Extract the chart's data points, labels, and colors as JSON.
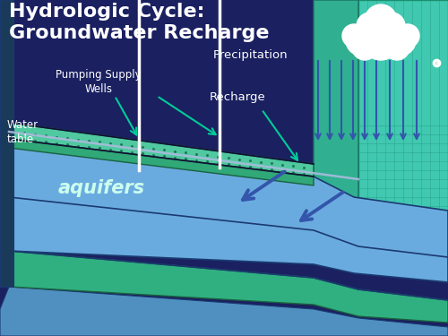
{
  "title_line1": "Hydrologic Cycle:",
  "title_line2": "Groundwater Recharge",
  "bg_color": "#1a2060",
  "label_precipitation": "Precipitation",
  "label_pumping": "Pumping Supply\nWells",
  "label_recharge": "Recharge",
  "label_water_table": "Water\ntable",
  "label_aquifers": "aquifers",
  "title_color": "white",
  "label_color": "white",
  "rain_color": "#3355aa",
  "well_color": "white",
  "arrow_label_color": "#00cc99",
  "aquifer_flow_color": "#3355aa",
  "water_table_color": "#aabbdd"
}
